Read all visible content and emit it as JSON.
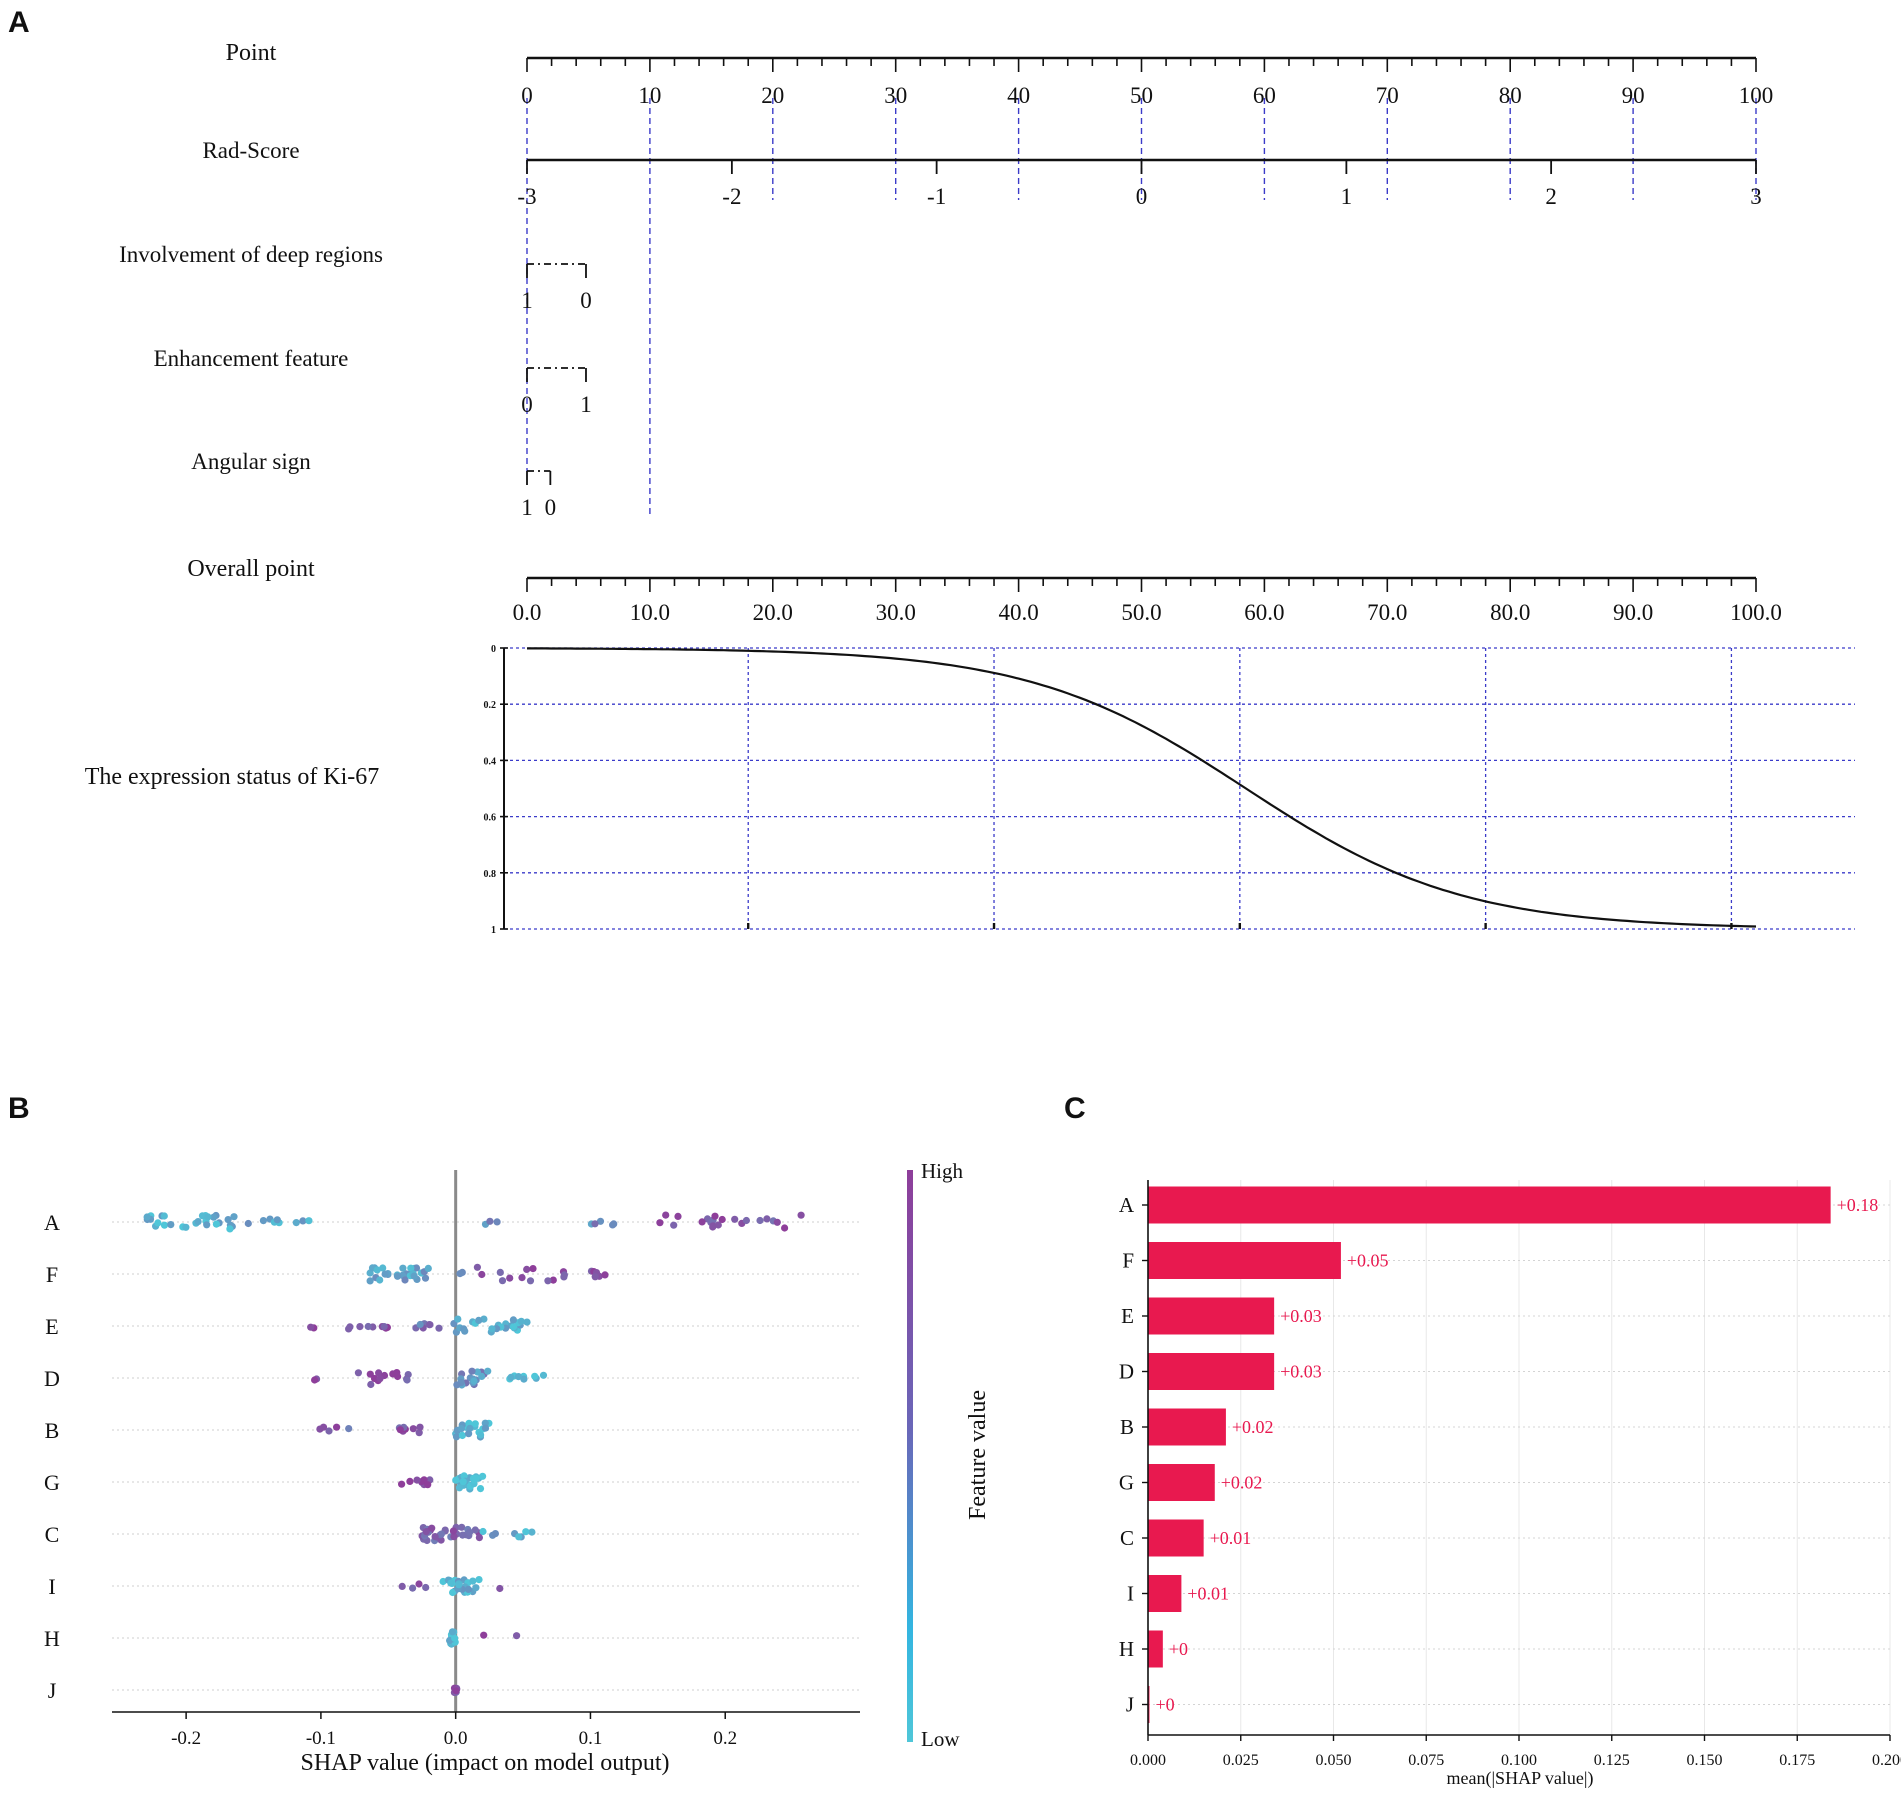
{
  "panels": {
    "a": "A",
    "b": "B",
    "c": "C"
  },
  "colors": {
    "high": "#8E3E9A",
    "low": "#4FC6D8",
    "bar": "#E8194F",
    "grid": "#3B3BC9",
    "axis": "#111111"
  },
  "chart_data": [
    {
      "type": "nomogram",
      "panel": "A",
      "point_scale": {
        "label": "Point",
        "range": [
          0,
          100
        ],
        "ticks": [
          "0",
          "10",
          "20",
          "30",
          "40",
          "50",
          "60",
          "70",
          "80",
          "90",
          "100"
        ]
      },
      "variables": [
        {
          "label": "Rad-Score",
          "ticks": [
            {
              "t": "-3",
              "p": 0
            },
            {
              "t": "-2",
              "p": 16.67
            },
            {
              "t": "-1",
              "p": 33.33
            },
            {
              "t": "0",
              "p": 50
            },
            {
              "t": "1",
              "p": 66.67
            },
            {
              "t": "2",
              "p": 83.33
            },
            {
              "t": "3",
              "p": 100
            }
          ]
        },
        {
          "label": "Involvement of deep regions",
          "ticks": [
            {
              "t": "1",
              "p": 0
            },
            {
              "t": "0",
              "p": 4.8
            }
          ]
        },
        {
          "label": "Enhancement feature",
          "ticks": [
            {
              "t": "0",
              "p": 0
            },
            {
              "t": "1",
              "p": 4.8
            }
          ]
        },
        {
          "label": "Angular sign",
          "ticks": [
            {
              "t": "1",
              "p": 0
            },
            {
              "t": "0",
              "p": 1.9
            }
          ]
        }
      ],
      "overall_scale": {
        "label": "Overall point",
        "range": [
          0,
          100
        ],
        "ticks": [
          "0.0",
          "10.0",
          "20.0",
          "30.0",
          "40.0",
          "50.0",
          "60.0",
          "70.0",
          "80.0",
          "90.0",
          "100.0"
        ]
      },
      "outcome": {
        "label": "The expression status of Ki-67",
        "y_ticks": [
          "0",
          "0.2",
          "0.4",
          "0.6",
          "0.8",
          "1"
        ],
        "curve": {
          "midpoint": 58.5,
          "scale": 8.8
        },
        "grid_x": [
          18,
          38,
          58,
          78,
          98
        ]
      },
      "dashed_guides": [
        0,
        10,
        20,
        30,
        40,
        50,
        60,
        70,
        80,
        90,
        100
      ]
    },
    {
      "type": "scatter",
      "panel": "B",
      "title": "",
      "xlabel": "SHAP value (impact on model output)",
      "xlim": [
        -0.255,
        0.3
      ],
      "xticks": [
        "-0.2",
        "-0.1",
        "0.0",
        "0.1",
        "0.2"
      ],
      "xtick_values": [
        -0.2,
        -0.1,
        0.0,
        0.1,
        0.2
      ],
      "colorbar": {
        "label": "Feature value",
        "high": "High",
        "low": "Low"
      },
      "features": [
        {
          "name": "A",
          "clusters": [
            [
              -0.23,
              -0.16,
              28,
              0.1
            ],
            [
              -0.155,
              -0.13,
              6,
              0.2
            ],
            [
              -0.12,
              -0.1,
              3,
              0.25
            ],
            [
              0.02,
              0.04,
              3,
              0.45
            ],
            [
              0.1,
              0.12,
              5,
              0.45
            ],
            [
              0.15,
              0.27,
              22,
              0.85
            ]
          ]
        },
        {
          "name": "F",
          "clusters": [
            [
              -0.065,
              -0.02,
              30,
              0.25
            ],
            [
              -0.01,
              0.01,
              2,
              0.6
            ],
            [
              0.015,
              0.09,
              14,
              0.85
            ],
            [
              0.095,
              0.12,
              6,
              0.95
            ]
          ]
        },
        {
          "name": "E",
          "clusters": [
            [
              -0.11,
              -0.1,
              2,
              0.9
            ],
            [
              -0.08,
              -0.05,
              9,
              0.85
            ],
            [
              -0.03,
              0.0,
              8,
              0.55
            ],
            [
              0.0,
              0.055,
              26,
              0.15
            ]
          ]
        },
        {
          "name": "D",
          "clusters": [
            [
              -0.11,
              -0.095,
              2,
              0.9
            ],
            [
              -0.075,
              -0.035,
              14,
              0.9
            ],
            [
              0.0,
              0.025,
              18,
              0.4
            ],
            [
              0.04,
              0.07,
              9,
              0.05
            ]
          ]
        },
        {
          "name": "B",
          "clusters": [
            [
              -0.11,
              -0.07,
              5,
              0.75
            ],
            [
              -0.05,
              -0.02,
              8,
              0.85
            ],
            [
              0.0,
              0.025,
              22,
              0.1
            ]
          ]
        },
        {
          "name": "G",
          "clusters": [
            [
              -0.045,
              -0.015,
              9,
              0.95
            ],
            [
              0.0,
              0.02,
              24,
              0.0
            ]
          ]
        },
        {
          "name": "C",
          "clusters": [
            [
              -0.025,
              0.02,
              34,
              0.7
            ],
            [
              0.02,
              0.06,
              8,
              0.2
            ]
          ]
        },
        {
          "name": "I",
          "clusters": [
            [
              -0.04,
              -0.015,
              4,
              0.7
            ],
            [
              -0.01,
              0.02,
              24,
              0.15
            ],
            [
              0.03,
              0.038,
              1,
              1.0
            ]
          ]
        },
        {
          "name": "H",
          "clusters": [
            [
              -0.005,
              0.0,
              12,
              0.05
            ],
            [
              0.018,
              0.022,
              1,
              1.0
            ],
            [
              0.045,
              0.048,
              1,
              1.0
            ]
          ]
        },
        {
          "name": "J",
          "clusters": [
            [
              -0.001,
              0.001,
              10,
              0.9
            ]
          ]
        }
      ]
    },
    {
      "type": "bar",
      "panel": "C",
      "orientation": "horizontal",
      "categories": [
        "A",
        "F",
        "E",
        "D",
        "B",
        "G",
        "C",
        "I",
        "H",
        "J"
      ],
      "values": [
        0.184,
        0.052,
        0.034,
        0.034,
        0.021,
        0.018,
        0.015,
        0.009,
        0.004,
        0.0004
      ],
      "data_labels": [
        "+0.18",
        "+0.05",
        "+0.03",
        "+0.03",
        "+0.02",
        "+0.02",
        "+0.01",
        "+0.01",
        "+0",
        "+0"
      ],
      "xlabel": "mean(|SHAP value|)",
      "xlim": [
        0,
        0.2
      ],
      "xticks": [
        "0.000",
        "0.025",
        "0.050",
        "0.075",
        "0.100",
        "0.125",
        "0.150",
        "0.175",
        "0.200"
      ],
      "xtick_values": [
        0,
        0.025,
        0.05,
        0.075,
        0.1,
        0.125,
        0.15,
        0.175,
        0.2
      ]
    }
  ]
}
